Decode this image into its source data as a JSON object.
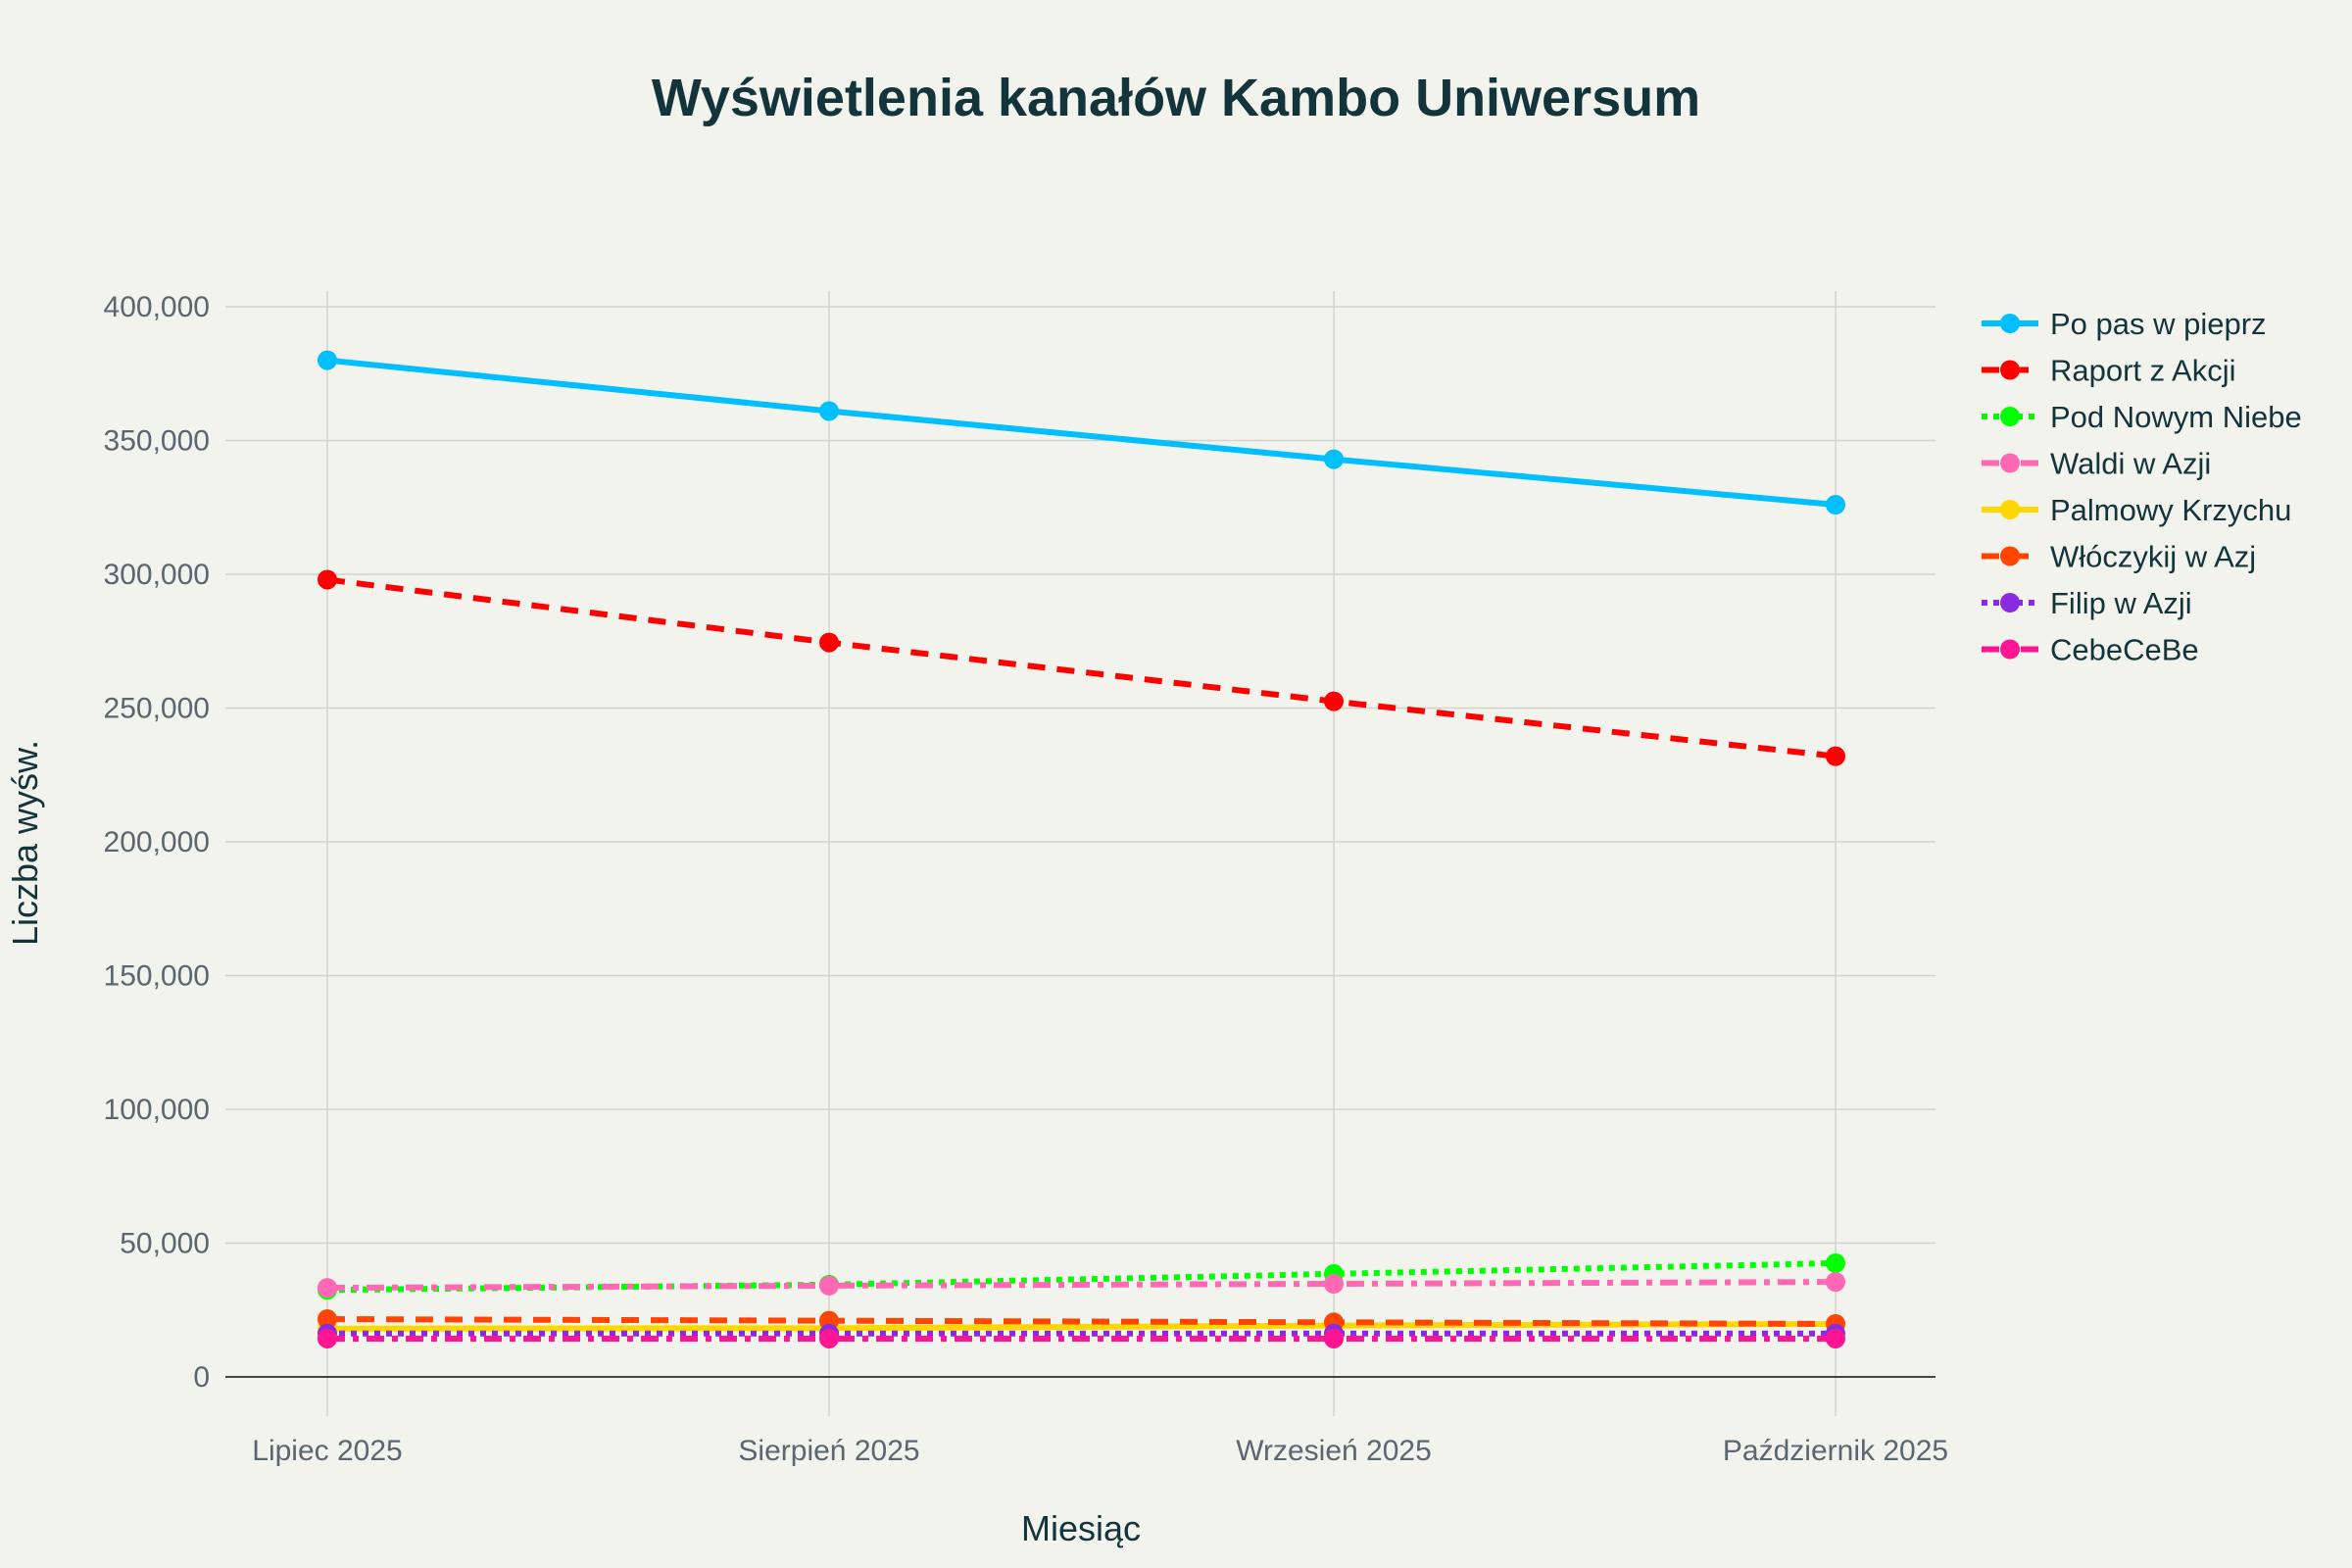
{
  "chart_data": {
    "type": "line",
    "title": "Wyświetlenia kanałów Kambo Uniwersum",
    "xlabel": "Miesiąc",
    "ylabel": "Liczba wyśw.",
    "categories": [
      "Lipiec 2025",
      "Sierpień 2025",
      "Wrzesień 2025",
      "Październik 2025"
    ],
    "ylim": [
      0,
      400000
    ],
    "yticks": [
      0,
      50000,
      100000,
      150000,
      200000,
      250000,
      300000,
      350000,
      400000
    ],
    "ytick_labels": [
      "0",
      "50,000",
      "100,000",
      "150,000",
      "200,000",
      "250,000",
      "300,000",
      "350,000",
      "400,000"
    ],
    "grid": true,
    "legend_position": "right",
    "series": [
      {
        "name": "Po pas w pieprz",
        "color": "#00bfff",
        "dash": "solid",
        "values": [
          380000,
          361000,
          343000,
          326000
        ]
      },
      {
        "name": "Raport z Akcji",
        "color": "#ff0000",
        "dash": "dash",
        "values": [
          298000,
          274500,
          252500,
          232000
        ]
      },
      {
        "name": "Pod Nowym Niebe",
        "color": "#00ff00",
        "dash": "dot",
        "values": [
          32500,
          34500,
          38500,
          42500
        ]
      },
      {
        "name": "Waldi w Azji",
        "color": "#ff69b4",
        "dash": "dashdot",
        "values": [
          33300,
          34100,
          34800,
          35500
        ]
      },
      {
        "name": "Palmowy Krzychu",
        "color": "#ffd700",
        "dash": "solid",
        "values": [
          18000,
          18200,
          19200,
          19800
        ]
      },
      {
        "name": "Włóczykij w Azj",
        "color": "#ff4500",
        "dash": "dash",
        "values": [
          21600,
          21000,
          20400,
          19800
        ]
      },
      {
        "name": "Filip w Azji",
        "color": "#8a2be2",
        "dash": "dot",
        "values": [
          16200,
          16200,
          16200,
          16200
        ]
      },
      {
        "name": "CebeCeBe",
        "color": "#ff1493",
        "dash": "dashdot",
        "values": [
          14300,
          14300,
          14300,
          14300
        ]
      }
    ]
  }
}
